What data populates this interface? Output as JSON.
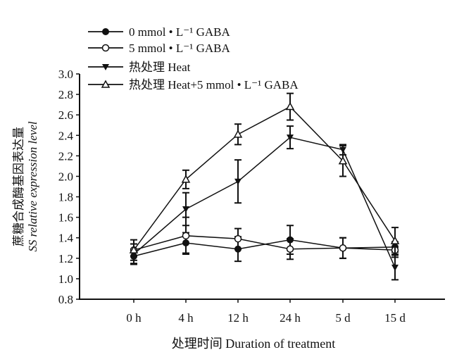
{
  "chart_data": {
    "type": "line",
    "title": "",
    "xlabel": "处理时间 Duration of treatment",
    "ylabel_cn": "蔗糖合成酶基因表达量",
    "ylabel": "SS relative expression level",
    "ylim": [
      0.8,
      3.0
    ],
    "yticks": [
      "0.8",
      "1.0",
      "1.2",
      "1.4",
      "1.6",
      "1.8",
      "2.0",
      "2.2",
      "2.4",
      "2.6",
      "2.8",
      "3.0"
    ],
    "categories": [
      "0 h",
      "4 h",
      "12 h",
      "24 h",
      "5 d",
      "15 d"
    ],
    "legend_position": "top-left",
    "series": [
      {
        "name": "0 mmol • L⁻¹ GABA",
        "marker": "filled-circle",
        "values": [
          1.22,
          1.35,
          1.29,
          1.38,
          1.3,
          1.31
        ],
        "errors": [
          0.07,
          0.1,
          0.12,
          0.14,
          0.1,
          0.05
        ]
      },
      {
        "name": "5 mmol • L⁻¹ GABA",
        "marker": "open-circle",
        "values": [
          1.28,
          1.42,
          1.39,
          1.29,
          1.3,
          1.28
        ],
        "errors": [
          0.1,
          0.18,
          0.1,
          0.1,
          0.1,
          0.07
        ]
      },
      {
        "name": "热处理 Heat",
        "marker": "filled-triangle-down",
        "values": [
          1.24,
          1.68,
          1.95,
          2.38,
          2.26,
          1.11
        ],
        "errors": [
          0.1,
          0.16,
          0.21,
          0.11,
          0.05,
          0.12
        ]
      },
      {
        "name": "热处理 Heat+5 mmol • L⁻¹ GABA",
        "marker": "open-triangle-up",
        "values": [
          1.28,
          1.97,
          2.41,
          2.68,
          2.15,
          1.37
        ],
        "errors": [
          0.06,
          0.09,
          0.1,
          0.13,
          0.15,
          0.13
        ]
      }
    ]
  }
}
